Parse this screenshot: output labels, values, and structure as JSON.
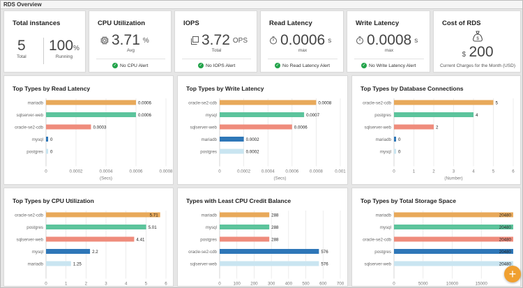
{
  "page": {
    "title": "RDS Overview"
  },
  "colors": {
    "orange": "#e8a95a",
    "green": "#5cc49c",
    "salmon": "#ef8c7c",
    "blue": "#2e77b8",
    "lightblue": "#c9e5f1",
    "check": "#22a34a",
    "accent": "#f0a030"
  },
  "stats": {
    "total_instances": {
      "title": "Total instances",
      "total_value": "5",
      "total_label": "Total",
      "running_value": "100",
      "running_unit": "%",
      "running_label": "Running"
    },
    "cpu": {
      "title": "CPU Utilization",
      "value": "3.71",
      "unit": "%",
      "label": "Avg",
      "alert": "No CPU Alert",
      "icon": "cpu-chip-icon"
    },
    "iops": {
      "title": "IOPS",
      "value": "3.72",
      "unit": "OPS",
      "label": "Total",
      "alert": "No IOPS Alert",
      "icon": "copy-stack-icon"
    },
    "read_latency": {
      "title": "Read Latency",
      "value": "0.0006",
      "unit": "s",
      "label": "max",
      "alert": "No Read Latency Alert",
      "icon": "timer-icon"
    },
    "write_latency": {
      "title": "Write Latency",
      "value": "0.0008",
      "unit": "s",
      "label": "max",
      "alert": "No Write Latency Alert",
      "icon": "timer-icon"
    },
    "cost": {
      "title": "Cost of RDS",
      "currency": "$",
      "value": "200",
      "label": "Current Charges for the Month (USD)",
      "icon": "money-bag-icon"
    }
  },
  "chart_data": [
    {
      "type": "bar",
      "title": "Top Types by Read Latency",
      "categories": [
        "mariadb",
        "sqlserver-web",
        "oracle-se2-cdb",
        "mysql",
        "postgres"
      ],
      "values": [
        0.0006,
        0.0006,
        0.0003,
        0,
        0
      ],
      "value_labels": [
        "0.0006",
        "0.0006",
        "0.0003",
        "0",
        "0"
      ],
      "bar_colors": [
        "#e8a95a",
        "#5cc49c",
        "#ef8c7c",
        "#2e77b8",
        "#c9e5f1"
      ],
      "xlim": [
        0,
        0.0008
      ],
      "xticks": [
        "0",
        "0.0002",
        "0.0004",
        "0.0006",
        "0.0008"
      ],
      "xlabel": "(Secs)",
      "grid": true
    },
    {
      "type": "bar",
      "title": "Top Types by Write Latency",
      "categories": [
        "oracle-se2-cdb",
        "mysql",
        "sqlserver-web",
        "mariadb",
        "postgres"
      ],
      "values": [
        0.0008,
        0.0007,
        0.0006,
        0.0002,
        0.0002
      ],
      "value_labels": [
        "0.0008",
        "0.0007",
        "0.0006",
        "0.0002",
        "0.0002"
      ],
      "bar_colors": [
        "#e8a95a",
        "#5cc49c",
        "#ef8c7c",
        "#2e77b8",
        "#c9e5f1"
      ],
      "xlim": [
        0,
        0.001
      ],
      "xticks": [
        "0",
        "0.0002",
        "0.0004",
        "0.0006",
        "0.0008",
        "0.001"
      ],
      "xlabel": "(Secs)",
      "grid": true
    },
    {
      "type": "bar",
      "title": "Top Types by Database Connections",
      "categories": [
        "oracle-se2-cdb",
        "postgres",
        "sqlserver-web",
        "mariadb",
        "mysql"
      ],
      "values": [
        5,
        4,
        2,
        0,
        0
      ],
      "value_labels": [
        "5",
        "4",
        "2",
        "0",
        "0"
      ],
      "bar_colors": [
        "#e8a95a",
        "#5cc49c",
        "#ef8c7c",
        "#2e77b8",
        "#c9e5f1"
      ],
      "xlim": [
        0,
        6
      ],
      "xticks": [
        "0",
        "1",
        "2",
        "3",
        "4",
        "5",
        "6"
      ],
      "xlabel": "(Number)",
      "grid": true
    },
    {
      "type": "bar",
      "title": "Top Types by CPU Utilization",
      "categories": [
        "oracle-se2-cdb",
        "postgres",
        "sqlserver-web",
        "mysql",
        "mariadb"
      ],
      "values": [
        5.71,
        5.01,
        4.41,
        2.2,
        1.25
      ],
      "value_labels": [
        "5.71",
        "5.01",
        "4.41",
        "2.2",
        "1.25"
      ],
      "bar_colors": [
        "#e8a95a",
        "#5cc49c",
        "#ef8c7c",
        "#2e77b8",
        "#c9e5f1"
      ],
      "xlim": [
        0,
        6
      ],
      "xticks": [
        "0",
        "1",
        "2",
        "3",
        "4",
        "5",
        "6"
      ],
      "xlabel": "",
      "grid": true
    },
    {
      "type": "bar",
      "title": "Types with Least CPU Credit Balance",
      "categories": [
        "mariadb",
        "mysql",
        "postgres",
        "oracle-se2-cdb",
        "sqlserver-web"
      ],
      "values": [
        288,
        288,
        288,
        576,
        576
      ],
      "value_labels": [
        "288",
        "288",
        "288",
        "576",
        "576"
      ],
      "bar_colors": [
        "#e8a95a",
        "#5cc49c",
        "#ef8c7c",
        "#2e77b8",
        "#c9e5f1"
      ],
      "xlim": [
        0,
        700
      ],
      "xticks": [
        "0",
        "100",
        "200",
        "300",
        "400",
        "500",
        "600",
        "700"
      ],
      "xlabel": "",
      "grid": true
    },
    {
      "type": "bar",
      "title": "Top Types by Total Storage Space",
      "categories": [
        "mariadb",
        "mysql",
        "oracle-se2-cdb",
        "postgres",
        "sqlserver-web"
      ],
      "values": [
        20480,
        20480,
        20480,
        20480,
        20480
      ],
      "value_labels": [
        "20480",
        "20480",
        "20480",
        "20480",
        "20480"
      ],
      "bar_colors": [
        "#e8a95a",
        "#5cc49c",
        "#ef8c7c",
        "#2e77b8",
        "#c9e5f1"
      ],
      "xlim": [
        0,
        20480
      ],
      "xticks": [
        "0",
        "5000",
        "10000",
        "15000"
      ],
      "xlabel": "",
      "grid": true
    }
  ],
  "fab": {
    "label": "+"
  }
}
